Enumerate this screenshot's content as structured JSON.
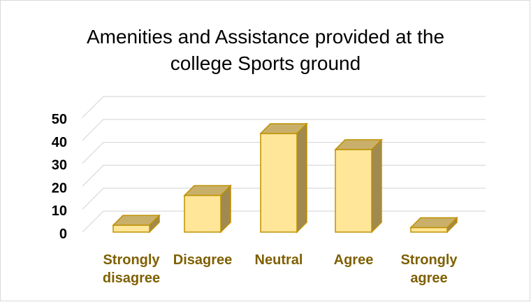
{
  "colors": {
    "bar_front": "#ffe699",
    "bar_top": "#c9b06a",
    "bar_side": "#a08a50",
    "bar_edge": "#bf9000",
    "category_text": "#7f6000",
    "grid": "#d9d9d9"
  },
  "chart_data": {
    "type": "bar",
    "title": "Amenities and Assistance provided at the\ncollege Sports ground",
    "categories": [
      "Strongly\ndisagree",
      "Disagree",
      "Neutral",
      "Agree",
      "Strongly\nagree"
    ],
    "values": [
      3,
      16,
      43,
      36,
      2
    ],
    "yticks": [
      "0",
      "10",
      "20",
      "30",
      "40",
      "50"
    ],
    "ylim": [
      0,
      50
    ],
    "grid": true,
    "legend": "none",
    "three_d": true
  }
}
